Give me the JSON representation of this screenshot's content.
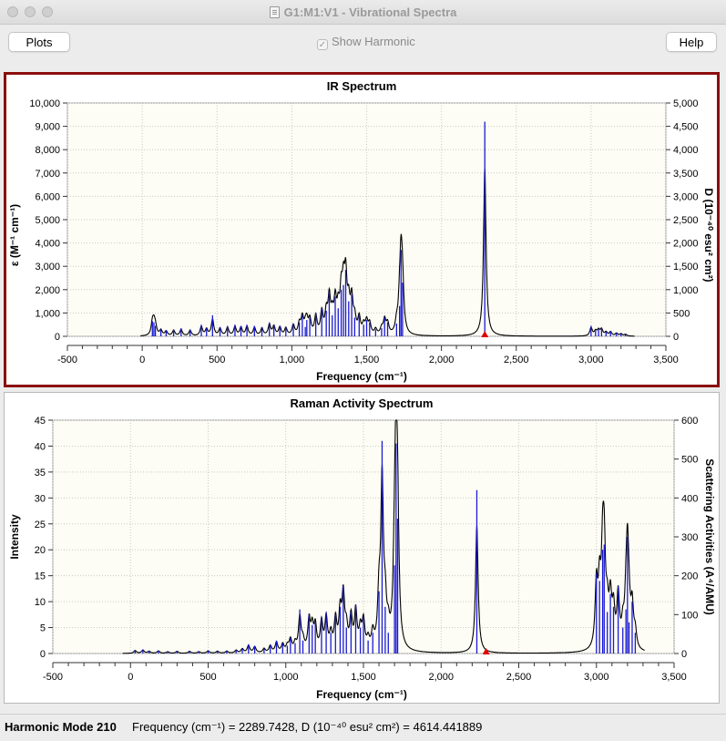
{
  "window": {
    "title": "G1:M1:V1 - Vibrational Spectra"
  },
  "toolbar": {
    "plots_label": "Plots",
    "help_label": "Help",
    "show_harmonic_label": "Show Harmonic",
    "show_harmonic_checked": true
  },
  "ir": {
    "title": "IR Spectrum",
    "xlabel": "Frequency (cm⁻¹)",
    "ylabel_left": "ε (M⁻¹ cm⁻¹)",
    "ylabel_right": "D (10⁻⁴⁰ esu² cm²)",
    "xticks": [
      "-500",
      "0",
      "500",
      "1,000",
      "1,500",
      "2,000",
      "2,500",
      "3,000",
      "3,500"
    ],
    "yticks_left": [
      "0",
      "1,000",
      "2,000",
      "3,000",
      "4,000",
      "5,000",
      "6,000",
      "7,000",
      "8,000",
      "9,000",
      "10,000"
    ],
    "yticks_right": [
      "0",
      "500",
      "1,000",
      "1,500",
      "2,000",
      "2,500",
      "3,000",
      "3,500",
      "4,000",
      "4,500",
      "5,000"
    ]
  },
  "raman": {
    "title": "Raman Activity Spectrum",
    "xlabel": "Frequency (cm⁻¹)",
    "ylabel_left": "Intensity",
    "ylabel_right": "Scattering Activities (A⁴/AMU)",
    "xticks": [
      "-500",
      "0",
      "500",
      "1,000",
      "1,500",
      "2,000",
      "2,500",
      "3,000",
      "3,500"
    ],
    "yticks_left": [
      "0",
      "5",
      "10",
      "15",
      "20",
      "25",
      "30",
      "35",
      "40",
      "45"
    ],
    "yticks_right": [
      "0",
      "100",
      "200",
      "300",
      "400",
      "500",
      "600"
    ]
  },
  "status": {
    "mode_label": "Harmonic Mode 210",
    "readout": "Frequency (cm⁻¹) = 2289.7428, D (10⁻⁴⁰ esu² cm²) = 4614.441889"
  },
  "colors": {
    "stick": "#1a1ad6",
    "envelope": "#000000",
    "marker": "#e00000",
    "plot_bg": "#fdfdf5",
    "frame": "#8b0d0d"
  },
  "chart_data": [
    {
      "type": "line",
      "title": "IR Spectrum",
      "xlabel": "Frequency (cm⁻¹)",
      "ylabel": "ε (M⁻¹ cm⁻¹)",
      "y2label": "D (10⁻⁴⁰ esu² cm²)",
      "xlim": [
        -500,
        3500
      ],
      "ylim": [
        0,
        10000
      ],
      "y2lim": [
        0,
        5000
      ],
      "grid": true,
      "selected_mode_frequency": 2289.7428,
      "series": [
        {
          "x": [
            68,
            78,
            88,
            125,
            160,
            210,
            260,
            320,
            395,
            430,
            470,
            520,
            570,
            620,
            660,
            700,
            750,
            800,
            850,
            880,
            920,
            960,
            1010,
            1050,
            1070,
            1090,
            1100,
            1120,
            1160,
            1200,
            1230,
            1250,
            1270,
            1290,
            1310,
            1330,
            1345,
            1360,
            1380,
            1400,
            1420,
            1450,
            1480,
            1500,
            1520,
            1560,
            1600,
            1620,
            1640,
            1700,
            1720,
            1730,
            1740,
            2289.7,
            3000,
            3030,
            3050,
            3070,
            3100,
            3130,
            3170,
            3200,
            3230
          ],
          "values": [
            650,
            600,
            450,
            300,
            250,
            300,
            350,
            300,
            500,
            350,
            900,
            400,
            450,
            500,
            450,
            500,
            450,
            400,
            600,
            500,
            450,
            400,
            550,
            600,
            900,
            400,
            700,
            800,
            1000,
            1200,
            1100,
            1900,
            900,
            1700,
            1200,
            2000,
            2200,
            2850,
            1500,
            1800,
            800,
            900,
            500,
            700,
            600,
            300,
            350,
            800,
            600,
            550,
            1300,
            3700,
            2300,
            9200,
            450,
            250,
            300,
            350,
            200,
            220,
            150,
            120,
            100
          ]
        }
      ]
    },
    {
      "type": "line",
      "title": "Raman Activity Spectrum",
      "xlabel": "Frequency (cm⁻¹)",
      "ylabel": "Intensity",
      "y2label": "Scattering Activities (A⁴/AMU)",
      "xlim": [
        -500,
        3500
      ],
      "ylim": [
        0,
        45
      ],
      "y2lim": [
        0,
        600
      ],
      "grid": true,
      "selected_mode_frequency": 2289.7428,
      "series": [
        {
          "x": [
            30,
            80,
            120,
            180,
            240,
            300,
            380,
            440,
            500,
            560,
            620,
            680,
            720,
            760,
            800,
            860,
            900,
            940,
            980,
            1010,
            1030,
            1060,
            1090,
            1110,
            1150,
            1170,
            1190,
            1230,
            1260,
            1290,
            1320,
            1350,
            1370,
            1390,
            1420,
            1450,
            1480,
            1500,
            1530,
            1560,
            1600,
            1620,
            1640,
            1660,
            1700,
            1710,
            1720,
            2230,
            3000,
            3020,
            3040,
            3050,
            3070,
            3090,
            3110,
            3140,
            3170,
            3190,
            3200,
            3210,
            3230,
            3250
          ],
          "values": [
            0.7,
            0.8,
            0.5,
            0.6,
            0.4,
            0.5,
            0.5,
            0.4,
            0.6,
            0.5,
            0.5,
            0.7,
            1.0,
            1.8,
            1.5,
            1.0,
            1.7,
            2.5,
            2.0,
            1.5,
            3.0,
            2.0,
            8.5,
            2.5,
            7.5,
            5.5,
            6.0,
            7.0,
            8.0,
            4.0,
            7.5,
            9.0,
            13.0,
            5.0,
            8.0,
            9.5,
            5.0,
            7.0,
            2.5,
            4.0,
            12.0,
            41.0,
            9.0,
            4.0,
            17.0,
            40.5,
            26.0,
            31.5,
            15.5,
            14.0,
            20.0,
            21.0,
            8.0,
            11.5,
            9.0,
            13.0,
            5.0,
            8.5,
            22.5,
            6.0,
            10.0,
            4.0
          ]
        }
      ]
    }
  ]
}
